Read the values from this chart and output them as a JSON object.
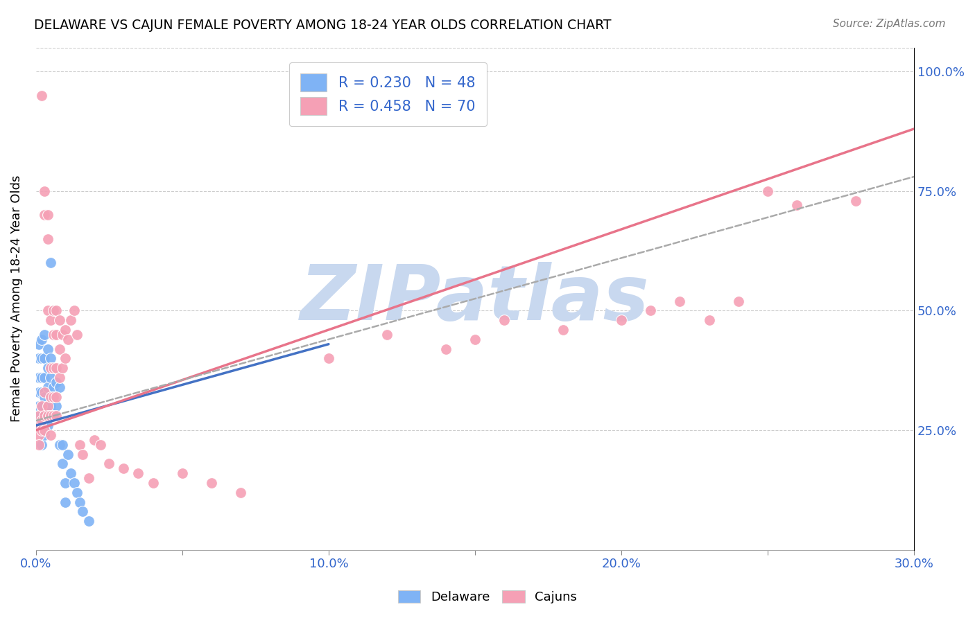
{
  "title": "DELAWARE VS CAJUN FEMALE POVERTY AMONG 18-24 YEAR OLDS CORRELATION CHART",
  "source": "Source: ZipAtlas.com",
  "ylabel": "Female Poverty Among 18-24 Year Olds",
  "xlim": [
    0.0,
    0.3
  ],
  "ylim": [
    0.0,
    1.05
  ],
  "xtick_labels": [
    "0.0%",
    "",
    "10.0%",
    "",
    "20.0%",
    "",
    "30.0%"
  ],
  "xtick_vals": [
    0.0,
    0.05,
    0.1,
    0.15,
    0.2,
    0.25,
    0.3
  ],
  "ytick_labels": [
    "25.0%",
    "50.0%",
    "75.0%",
    "100.0%"
  ],
  "ytick_vals": [
    0.25,
    0.5,
    0.75,
    1.0
  ],
  "legend_r1": "R = 0.230",
  "legend_n1": "N = 48",
  "legend_r2": "R = 0.458",
  "legend_n2": "N = 70",
  "delaware_color": "#7fb3f5",
  "cajun_color": "#f5a0b5",
  "delaware_line_color": "#4472c4",
  "cajun_line_color": "#e8748a",
  "dashed_line_color": "#aaaaaa",
  "watermark": "ZIPatlas",
  "watermark_color": "#c8d8ef",
  "del_line_x0": 0.0,
  "del_line_y0": 0.26,
  "del_line_x1": 0.1,
  "del_line_y1": 0.43,
  "caj_line_x0": 0.0,
  "caj_line_y0": 0.25,
  "caj_line_x1": 0.3,
  "caj_line_y1": 0.88,
  "dash_line_x0": 0.0,
  "dash_line_y0": 0.27,
  "dash_line_x1": 0.3,
  "dash_line_y1": 0.78,
  "delaware_pts": [
    [
      0.001,
      0.43
    ],
    [
      0.001,
      0.4
    ],
    [
      0.001,
      0.36
    ],
    [
      0.001,
      0.33
    ],
    [
      0.001,
      0.3
    ],
    [
      0.001,
      0.28
    ],
    [
      0.001,
      0.26
    ],
    [
      0.002,
      0.44
    ],
    [
      0.002,
      0.4
    ],
    [
      0.002,
      0.36
    ],
    [
      0.002,
      0.33
    ],
    [
      0.002,
      0.3
    ],
    [
      0.002,
      0.28
    ],
    [
      0.002,
      0.25
    ],
    [
      0.002,
      0.22
    ],
    [
      0.003,
      0.45
    ],
    [
      0.003,
      0.4
    ],
    [
      0.003,
      0.36
    ],
    [
      0.003,
      0.32
    ],
    [
      0.003,
      0.28
    ],
    [
      0.003,
      0.24
    ],
    [
      0.004,
      0.42
    ],
    [
      0.004,
      0.38
    ],
    [
      0.004,
      0.34
    ],
    [
      0.004,
      0.3
    ],
    [
      0.004,
      0.26
    ],
    [
      0.005,
      0.6
    ],
    [
      0.005,
      0.4
    ],
    [
      0.005,
      0.36
    ],
    [
      0.005,
      0.3
    ],
    [
      0.006,
      0.5
    ],
    [
      0.006,
      0.34
    ],
    [
      0.006,
      0.28
    ],
    [
      0.007,
      0.35
    ],
    [
      0.007,
      0.3
    ],
    [
      0.008,
      0.34
    ],
    [
      0.008,
      0.22
    ],
    [
      0.009,
      0.22
    ],
    [
      0.009,
      0.18
    ],
    [
      0.01,
      0.14
    ],
    [
      0.01,
      0.1
    ],
    [
      0.011,
      0.2
    ],
    [
      0.012,
      0.16
    ],
    [
      0.013,
      0.14
    ],
    [
      0.014,
      0.12
    ],
    [
      0.015,
      0.1
    ],
    [
      0.016,
      0.08
    ],
    [
      0.018,
      0.06
    ]
  ],
  "cajun_pts": [
    [
      0.001,
      0.28
    ],
    [
      0.001,
      0.26
    ],
    [
      0.001,
      0.24
    ],
    [
      0.001,
      0.22
    ],
    [
      0.002,
      0.95
    ],
    [
      0.002,
      0.3
    ],
    [
      0.002,
      0.27
    ],
    [
      0.002,
      0.25
    ],
    [
      0.003,
      0.75
    ],
    [
      0.003,
      0.7
    ],
    [
      0.003,
      0.33
    ],
    [
      0.003,
      0.28
    ],
    [
      0.003,
      0.25
    ],
    [
      0.004,
      0.7
    ],
    [
      0.004,
      0.65
    ],
    [
      0.004,
      0.5
    ],
    [
      0.004,
      0.3
    ],
    [
      0.004,
      0.28
    ],
    [
      0.005,
      0.48
    ],
    [
      0.005,
      0.38
    ],
    [
      0.005,
      0.32
    ],
    [
      0.005,
      0.28
    ],
    [
      0.005,
      0.24
    ],
    [
      0.006,
      0.5
    ],
    [
      0.006,
      0.45
    ],
    [
      0.006,
      0.38
    ],
    [
      0.006,
      0.32
    ],
    [
      0.006,
      0.28
    ],
    [
      0.007,
      0.5
    ],
    [
      0.007,
      0.45
    ],
    [
      0.007,
      0.38
    ],
    [
      0.007,
      0.32
    ],
    [
      0.007,
      0.28
    ],
    [
      0.008,
      0.48
    ],
    [
      0.008,
      0.42
    ],
    [
      0.008,
      0.36
    ],
    [
      0.009,
      0.45
    ],
    [
      0.009,
      0.38
    ],
    [
      0.01,
      0.46
    ],
    [
      0.01,
      0.4
    ],
    [
      0.011,
      0.44
    ],
    [
      0.012,
      0.48
    ],
    [
      0.013,
      0.5
    ],
    [
      0.014,
      0.45
    ],
    [
      0.015,
      0.22
    ],
    [
      0.016,
      0.2
    ],
    [
      0.018,
      0.15
    ],
    [
      0.02,
      0.23
    ],
    [
      0.022,
      0.22
    ],
    [
      0.025,
      0.18
    ],
    [
      0.03,
      0.17
    ],
    [
      0.035,
      0.16
    ],
    [
      0.04,
      0.14
    ],
    [
      0.05,
      0.16
    ],
    [
      0.06,
      0.14
    ],
    [
      0.07,
      0.12
    ],
    [
      0.1,
      0.4
    ],
    [
      0.12,
      0.45
    ],
    [
      0.14,
      0.42
    ],
    [
      0.15,
      0.44
    ],
    [
      0.16,
      0.48
    ],
    [
      0.18,
      0.46
    ],
    [
      0.2,
      0.48
    ],
    [
      0.21,
      0.5
    ],
    [
      0.22,
      0.52
    ],
    [
      0.23,
      0.48
    ],
    [
      0.24,
      0.52
    ],
    [
      0.25,
      0.75
    ],
    [
      0.26,
      0.72
    ],
    [
      0.28,
      0.73
    ]
  ]
}
